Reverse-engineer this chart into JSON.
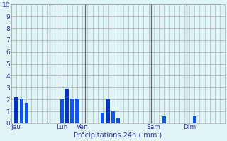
{
  "bars": [
    {
      "x": 1,
      "height": 2.2,
      "color": "#0033cc"
    },
    {
      "x": 2,
      "height": 2.1,
      "color": "#1155ee"
    },
    {
      "x": 3,
      "height": 1.7,
      "color": "#1155ee"
    },
    {
      "x": 10,
      "height": 2.0,
      "color": "#1155ee"
    },
    {
      "x": 11,
      "height": 2.9,
      "color": "#0033cc"
    },
    {
      "x": 12,
      "height": 2.1,
      "color": "#1155ee"
    },
    {
      "x": 13,
      "height": 2.1,
      "color": "#1155ee"
    },
    {
      "x": 18,
      "height": 0.9,
      "color": "#1155ee"
    },
    {
      "x": 19,
      "height": 2.0,
      "color": "#0033cc"
    },
    {
      "x": 20,
      "height": 1.0,
      "color": "#1155ee"
    },
    {
      "x": 21,
      "height": 0.4,
      "color": "#1155ee"
    },
    {
      "x": 30,
      "height": 0.6,
      "color": "#1155ee"
    },
    {
      "x": 36,
      "height": 0.6,
      "color": "#1155ee"
    }
  ],
  "xtick_positions": [
    1,
    10,
    14,
    18,
    28,
    35
  ],
  "xtick_labels": [
    "Jeu",
    "Lun",
    "Ven",
    "",
    "Sam",
    "Dim"
  ],
  "xlabel": "Précipitations 24h ( mm )",
  "ylim": [
    0,
    10
  ],
  "yticks": [
    0,
    1,
    2,
    3,
    4,
    5,
    6,
    7,
    8,
    9,
    10
  ],
  "bar_width": 0.7,
  "background_color": "#dff5f5",
  "grid_color": "#aaaaaa",
  "text_color": "#3333bb",
  "vline_positions": [
    7.5,
    14.5,
    27.5,
    34.5
  ],
  "xlim_min": 0,
  "xlim_max": 42
}
